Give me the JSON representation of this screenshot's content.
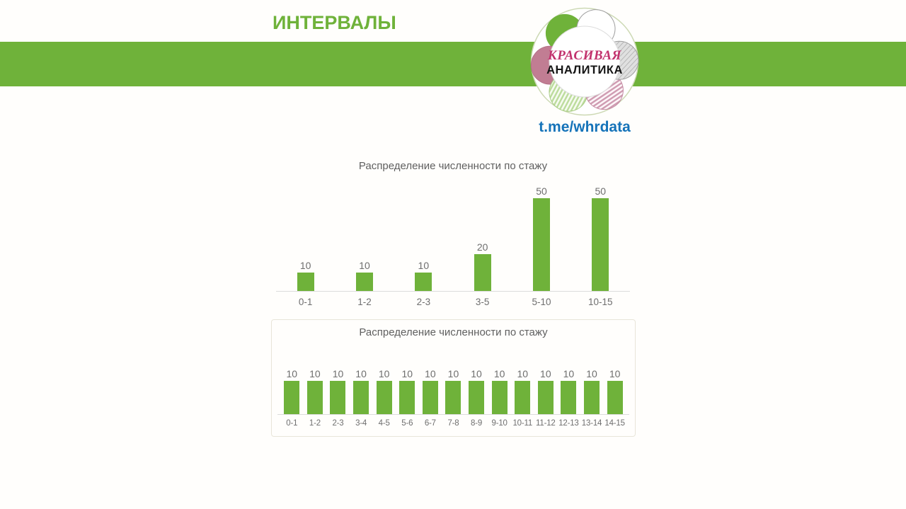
{
  "page": {
    "title": "ИНТЕРВАЛЫ"
  },
  "brand": {
    "logo_line1": "КРАСИВАЯ",
    "logo_line2": "АНАЛИТИКА",
    "telegram_link": "t.me/whrdata"
  },
  "colors": {
    "accent_green": "#6fb23a",
    "link_blue": "#1573b9",
    "logo_pink": "#c2336e",
    "logo_petal_rose": "#c17d93",
    "logo_petal_gray": "#b3b3b3",
    "chart_title_gray": "#5f5f5f",
    "chart_label_gray": "#6e6e6e",
    "axis_gray": "#dcdcdc",
    "box_border": "#e8e5d9"
  },
  "chart_data": [
    {
      "type": "bar",
      "title": "Распределение численности по стажу",
      "categories": [
        "0-1",
        "1-2",
        "2-3",
        "3-5",
        "5-10",
        "10-15"
      ],
      "values": [
        10,
        10,
        10,
        20,
        50,
        50
      ],
      "ylim": [
        0,
        50
      ],
      "bar_color": "#6fb23a",
      "data_labels": true,
      "grid": false,
      "legend": false,
      "xlabel": "",
      "ylabel": ""
    },
    {
      "type": "bar",
      "title": "Распределение численности по стажу",
      "categories": [
        "0-1",
        "1-2",
        "2-3",
        "3-4",
        "4-5",
        "5-6",
        "6-7",
        "7-8",
        "8-9",
        "9-10",
        "10-11",
        "11-12",
        "12-13",
        "13-14",
        "14-15"
      ],
      "values": [
        10,
        10,
        10,
        10,
        10,
        10,
        10,
        10,
        10,
        10,
        10,
        10,
        10,
        10,
        10
      ],
      "ylim": [
        0,
        10
      ],
      "bar_color": "#6fb23a",
      "data_labels": true,
      "grid": false,
      "legend": false,
      "xlabel": "",
      "ylabel": ""
    }
  ]
}
